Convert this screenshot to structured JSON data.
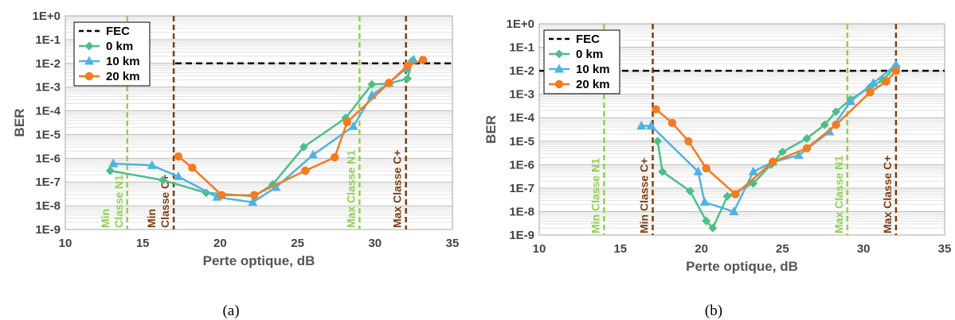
{
  "colors": {
    "fec": "#000000",
    "n1_lines": "#92D050",
    "c_lines": "#7F3F10",
    "series_0km": "#4DBF86",
    "series_10km": "#4FB3E2",
    "series_20km": "#F47B20",
    "grid_major": "#BFBFBF",
    "grid_minor": "#E3E3E3"
  },
  "chart_data": [
    {
      "type": "line",
      "caption": "(a)",
      "xlabel": "Perte optique, dB",
      "ylabel": "BER",
      "xlim": [
        10,
        35
      ],
      "x_ticks": [
        "10",
        "15",
        "20",
        "25",
        "30",
        "35"
      ],
      "y_scale": "log",
      "ylim": [
        1e-09,
        1
      ],
      "y_ticks": [
        "1E-9",
        "1E-8",
        "1E-7",
        "1E-6",
        "1E-5",
        "1E-4",
        "1E-3",
        "1E-2",
        "1E-1",
        "1E+0"
      ],
      "grid": true,
      "legend_position": "top-left",
      "legend": [
        "FEC",
        "0 km",
        "10 km",
        "20 km"
      ],
      "fec": {
        "name": "FEC",
        "y": 0.01,
        "x_start": 17.1
      },
      "vlines": [
        {
          "label_lines": [
            "Min",
            "Classe N1"
          ],
          "x": 14.0,
          "color": "n1"
        },
        {
          "label_lines": [
            "Min",
            "Classe C+"
          ],
          "x": 17.0,
          "color": "c"
        },
        {
          "label_lines": [
            "Max Classe N1"
          ],
          "x": 29.0,
          "color": "n1"
        },
        {
          "label_lines": [
            "Max Classe C+"
          ],
          "x": 32.0,
          "color": "c"
        }
      ],
      "series": [
        {
          "name": "0 km",
          "marker": "diamond",
          "x": [
            12.9,
            16.3,
            19.1,
            22.2,
            23.4,
            25.4,
            28.1,
            29.8,
            30.9,
            32.1,
            32.4
          ],
          "y": [
            3e-07,
            1.2e-07,
            3.5e-08,
            2.5e-08,
            8e-08,
            3e-06,
            5e-05,
            0.0013,
            0.0014,
            0.0023,
            0.013
          ]
        },
        {
          "name": "10 km",
          "marker": "triangle",
          "x": [
            13.1,
            15.6,
            17.3,
            19.8,
            22.1,
            23.6,
            26.0,
            28.6,
            29.8,
            30.9,
            32.0,
            32.5
          ],
          "y": [
            6e-07,
            5e-07,
            1.7e-07,
            2.3e-08,
            1.4e-08,
            6e-08,
            1.4e-06,
            2.2e-05,
            0.00045,
            0.0015,
            0.006,
            0.014
          ]
        },
        {
          "name": "20 km",
          "marker": "circle",
          "x": [
            17.3,
            18.2,
            20.1,
            22.2,
            25.5,
            27.4,
            28.2,
            30.9,
            32.1,
            33.1
          ],
          "y": [
            1.2e-06,
            4e-07,
            2.8e-08,
            2.8e-08,
            3e-07,
            1.1e-06,
            3.3e-05,
            0.0015,
            0.008,
            0.014
          ]
        }
      ]
    },
    {
      "type": "line",
      "caption": "(b)",
      "xlabel": "Perte optique, dB",
      "ylabel": "BER",
      "xlim": [
        10,
        35
      ],
      "x_ticks": [
        "10",
        "15",
        "20",
        "25",
        "30",
        "35"
      ],
      "y_scale": "log",
      "ylim": [
        1e-09,
        1
      ],
      "y_ticks": [
        "1E-9",
        "1E-8",
        "1E-7",
        "1E-6",
        "1E-5",
        "1E-4",
        "1E-3",
        "1E-2",
        "1E-1",
        "1E+0"
      ],
      "grid": true,
      "legend_position": "top-left",
      "legend": [
        "FEC",
        "0 km",
        "10 km",
        "20 km"
      ],
      "fec": {
        "name": "FEC",
        "y": 0.01,
        "x_start": 10
      },
      "vlines": [
        {
          "label_lines": [
            "Min Classe N1"
          ],
          "x": 14.0,
          "color": "n1"
        },
        {
          "label_lines": [
            "Min Classe C+"
          ],
          "x": 17.0,
          "color": "c"
        },
        {
          "label_lines": [
            "Max Classe N1"
          ],
          "x": 29.0,
          "color": "n1"
        },
        {
          "label_lines": [
            "Max Classe C+"
          ],
          "x": 32.0,
          "color": "c"
        }
      ],
      "series": [
        {
          "name": "0 km",
          "marker": "diamond",
          "x": [
            17.3,
            17.6,
            19.3,
            20.3,
            20.7,
            21.6,
            23.2,
            24.3,
            25.0,
            26.5,
            27.6,
            28.3,
            29.2,
            30.4,
            31.2,
            32.0
          ],
          "y": [
            1e-05,
            5e-07,
            7.5e-08,
            4e-09,
            2e-09,
            4.5e-08,
            1.6e-07,
            1e-06,
            3.5e-06,
            1.3e-05,
            5e-05,
            0.00018,
            0.0006,
            0.002,
            0.004,
            0.016
          ]
        },
        {
          "name": "10 km",
          "marker": "triangle",
          "x": [
            16.3,
            16.9,
            19.8,
            20.2,
            22.0,
            23.2,
            24.4,
            26.0,
            27.9,
            29.2,
            30.6,
            32.0
          ],
          "y": [
            4.5e-05,
            4.5e-05,
            5e-07,
            2.5e-08,
            1e-08,
            5e-07,
            1.3e-06,
            2.5e-06,
            2.5e-05,
            0.0005,
            0.003,
            0.018
          ]
        },
        {
          "name": "20 km",
          "marker": "circle",
          "x": [
            17.2,
            18.2,
            19.2,
            20.3,
            22.1,
            24.4,
            26.5,
            28.3,
            30.4,
            31.4,
            32.0
          ],
          "y": [
            0.00023,
            6e-05,
            1e-05,
            7e-07,
            5.5e-08,
            1.3e-06,
            5e-06,
            5e-05,
            0.0012,
            0.0035,
            0.01
          ]
        }
      ]
    }
  ]
}
